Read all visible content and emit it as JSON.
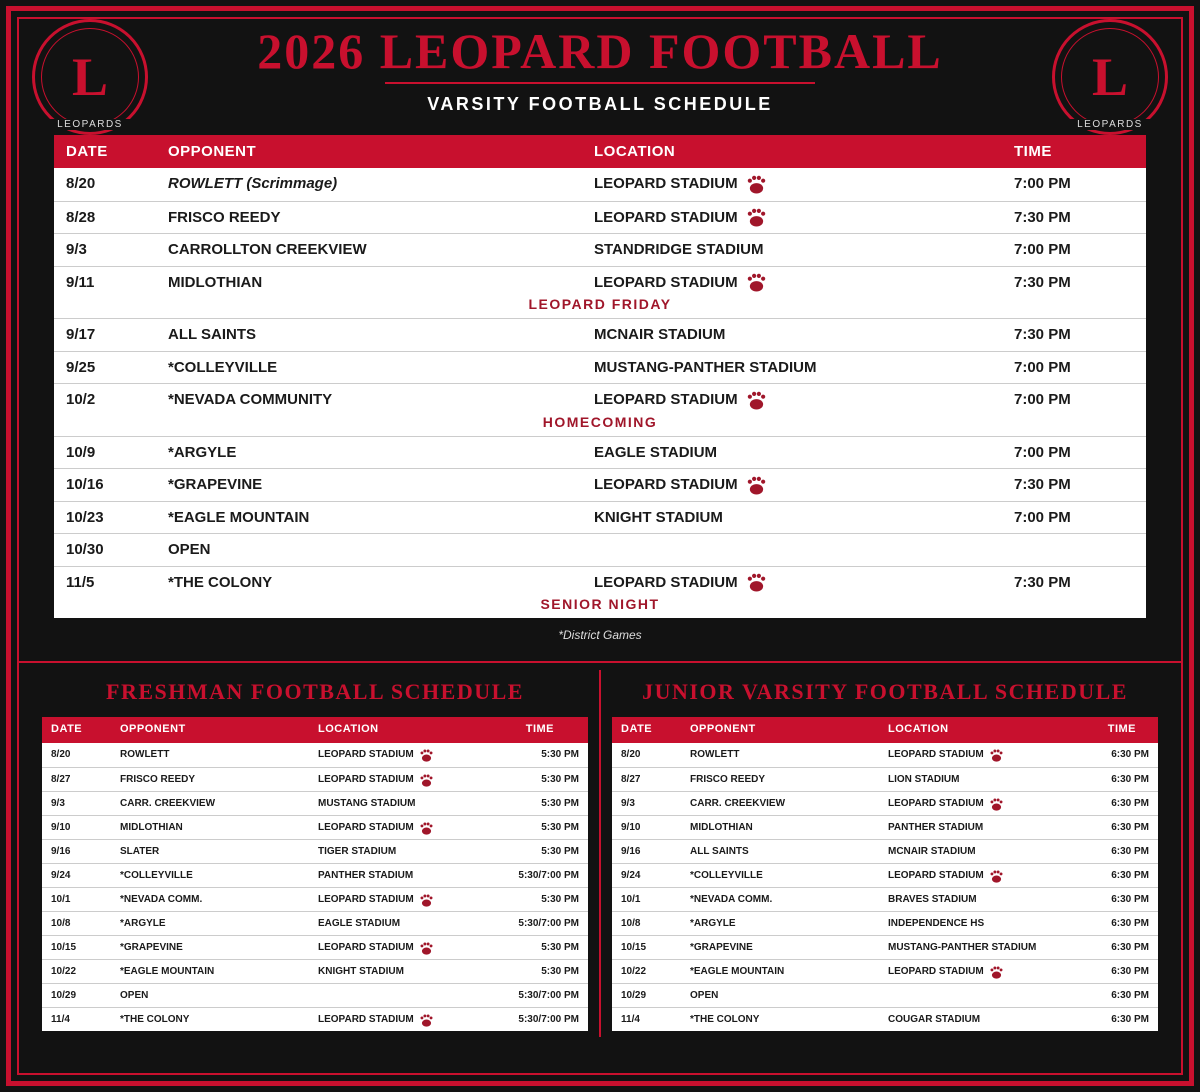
{
  "header": {
    "title": "2026 LEOPARD FOOTBALL",
    "subtitle": "VARSITY FOOTBALL SCHEDULE",
    "logos": [
      {
        "letter": "L",
        "name": "LEOPARDS"
      },
      {
        "letter": "L",
        "name": "LEOPARDS"
      }
    ]
  },
  "varsity": {
    "columns": [
      "DATE",
      "OPPONENT",
      "LOCATION",
      "TIME"
    ],
    "rows": [
      {
        "date": "8/20",
        "opponent": "ROWLETT (Scrimmage)",
        "italic": true,
        "location": "LEOPARD STADIUM",
        "paw": true,
        "time": "7:00 PM"
      },
      {
        "date": "8/28",
        "opponent": "FRISCO REEDY",
        "location": "LEOPARD STADIUM",
        "paw": true,
        "time": "7:30 PM"
      },
      {
        "date": "9/3",
        "opponent": "CARROLLTON CREEKVIEW",
        "location": "STANDRIDGE STADIUM",
        "time": "7:00 PM"
      },
      {
        "date": "9/11",
        "opponent": "MIDLOTHIAN",
        "location": "LEOPARD STADIUM",
        "paw": true,
        "time": "7:30 PM",
        "note": "LEOPARD FRIDAY"
      },
      {
        "date": "9/17",
        "opponent": "ALL SAINTS",
        "location": "MCNAIR STADIUM",
        "time": "7:30 PM"
      },
      {
        "date": "9/25",
        "opponent": "*COLLEYVILLE",
        "location": "MUSTANG-PANTHER STADIUM",
        "time": "7:00 PM"
      },
      {
        "date": "10/2",
        "opponent": "*NEVADA COMMUNITY",
        "location": "LEOPARD STADIUM",
        "paw": true,
        "time": "7:00 PM",
        "note": "HOMECOMING"
      },
      {
        "date": "10/9",
        "opponent": "*ARGYLE",
        "location": "EAGLE STADIUM",
        "time": "7:00 PM"
      },
      {
        "date": "10/16",
        "opponent": "*GRAPEVINE",
        "location": "LEOPARD STADIUM",
        "paw": true,
        "time": "7:30 PM"
      },
      {
        "date": "10/23",
        "opponent": "*EAGLE MOUNTAIN",
        "location": "KNIGHT STADIUM",
        "time": "7:00 PM"
      },
      {
        "date": "10/30",
        "opponent": "OPEN"
      },
      {
        "date": "11/5",
        "opponent": "*THE COLONY",
        "location": "LEOPARD STADIUM",
        "paw": true,
        "time": "7:30 PM",
        "note": "SENIOR NIGHT"
      }
    ],
    "footnote": "*District Games"
  },
  "freshman": {
    "title": "FRESHMAN FOOTBALL SCHEDULE",
    "columns": [
      "DATE",
      "OPPONENT",
      "LOCATION",
      "TIME"
    ],
    "rows": [
      {
        "date": "8/20",
        "opponent": "ROWLETT",
        "location": "LEOPARD STADIUM",
        "paw": true,
        "time": "5:30 PM"
      },
      {
        "date": "8/27",
        "opponent": "FRISCO REEDY",
        "location": "LEOPARD STADIUM",
        "paw": true,
        "time": "5:30 PM"
      },
      {
        "date": "9/3",
        "opponent": "CARR. CREEKVIEW",
        "location": "MUSTANG STADIUM",
        "time": "5:30 PM"
      },
      {
        "date": "9/10",
        "opponent": "MIDLOTHIAN",
        "location": "LEOPARD STADIUM",
        "paw": true,
        "time": "5:30 PM"
      },
      {
        "date": "9/16",
        "opponent": "SLATER",
        "location": "TIGER STADIUM",
        "time": "5:30 PM"
      },
      {
        "date": "9/24",
        "opponent": "*COLLEYVILLE",
        "location": "PANTHER STADIUM",
        "time": "5:30/7:00 PM"
      },
      {
        "date": "10/1",
        "opponent": "*NEVADA COMM.",
        "location": "LEOPARD STADIUM",
        "paw": true,
        "time": "5:30 PM"
      },
      {
        "date": "10/8",
        "opponent": "*ARGYLE",
        "location": "EAGLE STADIUM",
        "time": "5:30/7:00 PM"
      },
      {
        "date": "10/15",
        "opponent": "*GRAPEVINE",
        "location": "LEOPARD STADIUM",
        "paw": true,
        "time": "5:30 PM"
      },
      {
        "date": "10/22",
        "opponent": "*EAGLE MOUNTAIN",
        "location": "KNIGHT STADIUM",
        "time": "5:30 PM"
      },
      {
        "date": "10/29",
        "opponent": "OPEN",
        "time": "5:30/7:00 PM"
      },
      {
        "date": "11/4",
        "opponent": "*THE COLONY",
        "location": "LEOPARD STADIUM",
        "paw": true,
        "time": "5:30/7:00 PM"
      }
    ]
  },
  "junior_varsity": {
    "title": "JUNIOR VARSITY FOOTBALL SCHEDULE",
    "columns": [
      "DATE",
      "OPPONENT",
      "LOCATION",
      "TIME"
    ],
    "rows": [
      {
        "date": "8/20",
        "opponent": "ROWLETT",
        "location": "LEOPARD STADIUM",
        "paw": true,
        "time": "6:30 PM"
      },
      {
        "date": "8/27",
        "opponent": "FRISCO REEDY",
        "location": "LION STADIUM",
        "time": "6:30 PM"
      },
      {
        "date": "9/3",
        "opponent": "CARR. CREEKVIEW",
        "location": "LEOPARD STADIUM",
        "paw": true,
        "time": "6:30 PM"
      },
      {
        "date": "9/10",
        "opponent": "MIDLOTHIAN",
        "location": "PANTHER STADIUM",
        "time": "6:30 PM"
      },
      {
        "date": "9/16",
        "opponent": "ALL SAINTS",
        "location": "MCNAIR STADIUM",
        "time": "6:30 PM"
      },
      {
        "date": "9/24",
        "opponent": "*COLLEYVILLE",
        "location": "LEOPARD STADIUM",
        "paw": true,
        "time": "6:30 PM"
      },
      {
        "date": "10/1",
        "opponent": "*NEVADA COMM.",
        "location": "BRAVES STADIUM",
        "time": "6:30 PM"
      },
      {
        "date": "10/8",
        "opponent": "*ARGYLE",
        "location": "INDEPENDENCE HS",
        "time": "6:30 PM"
      },
      {
        "date": "10/15",
        "opponent": "*GRAPEVINE",
        "location": "MUSTANG-PANTHER STADIUM",
        "time": "6:30 PM"
      },
      {
        "date": "10/22",
        "opponent": "*EAGLE MOUNTAIN",
        "location": "LEOPARD STADIUM",
        "paw": true,
        "time": "6:30 PM"
      },
      {
        "date": "10/29",
        "opponent": "OPEN",
        "time": "6:30 PM"
      },
      {
        "date": "11/4",
        "opponent": "*THE COLONY",
        "location": "COUGAR STADIUM",
        "time": "6:30 PM"
      }
    ]
  }
}
